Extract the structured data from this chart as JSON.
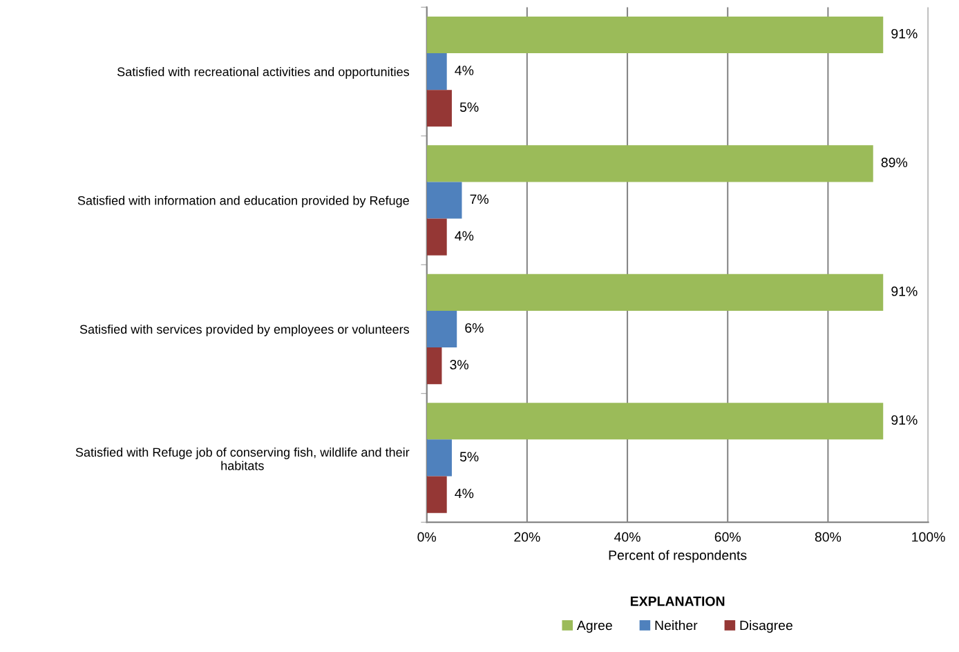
{
  "chart_data": {
    "type": "bar",
    "orientation": "horizontal",
    "categories": [
      "Satisfied with recreational activities and opportunities",
      "Satisfied with information and education provided by Refuge",
      "Satisfied with services provided by employees or volunteers",
      "Satisfied with Refuge job of conserving fish, wildlife and their\nhabitats"
    ],
    "series": [
      {
        "name": "Agree",
        "color": "#9bbb59",
        "values": [
          91,
          89,
          91,
          91
        ],
        "value_labels": [
          "91%",
          "89%",
          "91%",
          "91%"
        ]
      },
      {
        "name": "Neither",
        "color": "#4f81bd",
        "values": [
          4,
          7,
          6,
          5
        ],
        "value_labels": [
          "4%",
          "7%",
          "6%",
          "5%"
        ]
      },
      {
        "name": "Disagree",
        "color": "#953735",
        "values": [
          5,
          4,
          3,
          4
        ],
        "value_labels": [
          "5%",
          "4%",
          "3%",
          "4%"
        ]
      }
    ],
    "xlim": [
      0,
      100
    ],
    "xticks": [
      {
        "value": 0,
        "label": "0%"
      },
      {
        "value": 20,
        "label": "20%"
      },
      {
        "value": 40,
        "label": "40%"
      },
      {
        "value": 60,
        "label": "60%"
      },
      {
        "value": 80,
        "label": "80%"
      },
      {
        "value": 100,
        "label": "100%"
      }
    ],
    "xlabel": "Percent of respondents",
    "legend_title": "EXPLANATION",
    "legend": "bottom",
    "grid": "x"
  }
}
